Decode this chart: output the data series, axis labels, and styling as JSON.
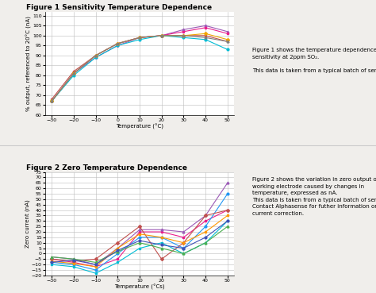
{
  "fig1_title": "Figure 1 Sensitivity Temperature Dependence",
  "fig2_title": "Figure 2 Zero Temperature Dependence",
  "fig1_ylabel": "% output, referenced to 20°C (nA)",
  "fig2_ylabel": "Zero current (nA)",
  "fig1_xlabel": "Temperature (°C)",
  "fig2_xlabel": "Temperature (°Cs)",
  "fig1_note": "Figure 1 shows the temperature dependence of\nsensitivity at 2ppm SO₂.\n\nThis data is taken from a typical batch of sensors.",
  "fig2_note": "Figure 2 shows the variation in zero output of the\nworking electrode caused by changes in\ntemperature, expressed as nA.\nThis data is taken from a typical batch of sensors.\nContact Alphasense for futher information on zero\ncurrent correction.",
  "x_ticks": [
    -30,
    -20,
    -10,
    0,
    10,
    20,
    30,
    40,
    50
  ],
  "fig1_ylim": [
    60,
    112
  ],
  "fig1_yticks": [
    60,
    65,
    70,
    75,
    80,
    85,
    90,
    95,
    100,
    105,
    110
  ],
  "fig2_ylim": [
    -20,
    75
  ],
  "fig2_yticks": [
    -20,
    -15,
    -10,
    -5,
    0,
    5,
    10,
    15,
    20,
    25,
    30,
    35,
    40,
    45,
    50,
    55,
    60,
    65,
    70,
    75
  ],
  "temp_x": [
    -30,
    -20,
    -10,
    0,
    10,
    20,
    30,
    40,
    50
  ],
  "fig1_curves": [
    {
      "color": "#c0504d",
      "values": [
        68,
        82,
        90,
        96,
        99,
        100,
        100,
        100,
        97
      ],
      "marker": "s"
    },
    {
      "color": "#9b59b6",
      "values": [
        67,
        81,
        89,
        95,
        99,
        100,
        103,
        105,
        102
      ],
      "marker": "^"
    },
    {
      "color": "#e91e8c",
      "values": [
        67,
        81,
        90,
        96,
        99,
        100,
        102,
        104,
        101
      ],
      "marker": "s"
    },
    {
      "color": "#00bcd4",
      "values": [
        67,
        80,
        89,
        95,
        98,
        100,
        99,
        98,
        93
      ],
      "marker": "o"
    },
    {
      "color": "#f0a500",
      "values": [
        67,
        81,
        90,
        96,
        99,
        100,
        100,
        101,
        98
      ],
      "marker": "D"
    },
    {
      "color": "#7f7f7f",
      "values": [
        67,
        81,
        90,
        96,
        99,
        100,
        100,
        99,
        97
      ],
      "marker": "^"
    }
  ],
  "fig2_curves": [
    {
      "color": "#e91e8c",
      "values": [
        -5,
        -8,
        -12,
        -5,
        20,
        20,
        15,
        30,
        40
      ],
      "marker": "s"
    },
    {
      "color": "#9b59b6",
      "values": [
        -3,
        -5,
        -10,
        5,
        22,
        22,
        20,
        35,
        65
      ],
      "marker": "^"
    },
    {
      "color": "#2196f3",
      "values": [
        -8,
        -10,
        -15,
        0,
        15,
        15,
        5,
        25,
        55
      ],
      "marker": "o"
    },
    {
      "color": "#00bcd4",
      "values": [
        -10,
        -12,
        -18,
        -8,
        5,
        10,
        0,
        10,
        30
      ],
      "marker": "s"
    },
    {
      "color": "#c0504d",
      "values": [
        -5,
        -7,
        -5,
        10,
        25,
        -5,
        10,
        35,
        40
      ],
      "marker": "D"
    },
    {
      "color": "#4caf50",
      "values": [
        -3,
        -5,
        -8,
        2,
        10,
        5,
        0,
        10,
        25
      ],
      "marker": "^"
    },
    {
      "color": "#ff9800",
      "values": [
        -7,
        -9,
        -12,
        5,
        18,
        15,
        10,
        20,
        35
      ],
      "marker": "s"
    },
    {
      "color": "#3f51b5",
      "values": [
        -8,
        -6,
        -10,
        3,
        12,
        8,
        5,
        15,
        30
      ],
      "marker": "o"
    }
  ],
  "background_color": "#f0eeeb",
  "plot_bg_color": "#ffffff",
  "grid_color": "#bbbbbb",
  "title_fontsize": 6.5,
  "label_fontsize": 5,
  "tick_fontsize": 4.5,
  "note_fontsize": 5
}
